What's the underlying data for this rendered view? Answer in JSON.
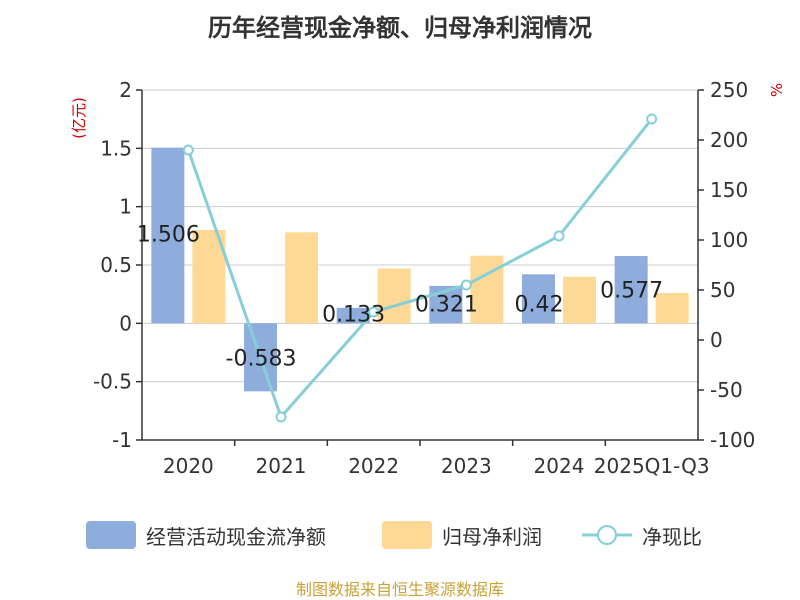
{
  "title": "历年经营现金净额、归母净利润情况",
  "source": "制图数据来自恒生聚源数据库",
  "colors": {
    "operating_cf": "#8eaddc",
    "net_profit": "#fdd995",
    "ratio_line": "#86cfd8",
    "axis_unit": "#cc0000",
    "grid": "#cccccc",
    "axis": "#333333"
  },
  "chart_data": {
    "type": "bar",
    "title": "历年经营现金净额、归母净利润情况",
    "categories": [
      "2020",
      "2021",
      "2022",
      "2023",
      "2024",
      "2025Q1-Q3"
    ],
    "left_axis": {
      "unit": "(亿元)",
      "ylim": [
        -1,
        2
      ],
      "ticks": [
        "2",
        "1.5",
        "1",
        "0.5",
        "0",
        "-0.5",
        "-1"
      ]
    },
    "right_axis": {
      "unit": "%",
      "ylim": [
        -100,
        250
      ],
      "ticks": [
        "250",
        "200",
        "150",
        "100",
        "50",
        "0",
        "-50",
        "-100"
      ]
    },
    "series": [
      {
        "name": "经营活动现金流净额",
        "type": "bar",
        "axis": "left",
        "values": [
          1.506,
          -0.583,
          0.133,
          0.321,
          0.42,
          0.577
        ],
        "labels": [
          "1.506",
          "-0.583",
          "0.133",
          "0.321",
          "0.42",
          "0.577"
        ]
      },
      {
        "name": "归母净利润",
        "type": "bar",
        "axis": "left",
        "values": [
          0.8,
          0.78,
          0.47,
          0.58,
          0.4,
          0.26
        ]
      },
      {
        "name": "净现比",
        "type": "line",
        "axis": "right",
        "values": [
          190,
          -77,
          28,
          55,
          104,
          221
        ]
      }
    ],
    "grid": true,
    "legend_position": "bottom"
  }
}
